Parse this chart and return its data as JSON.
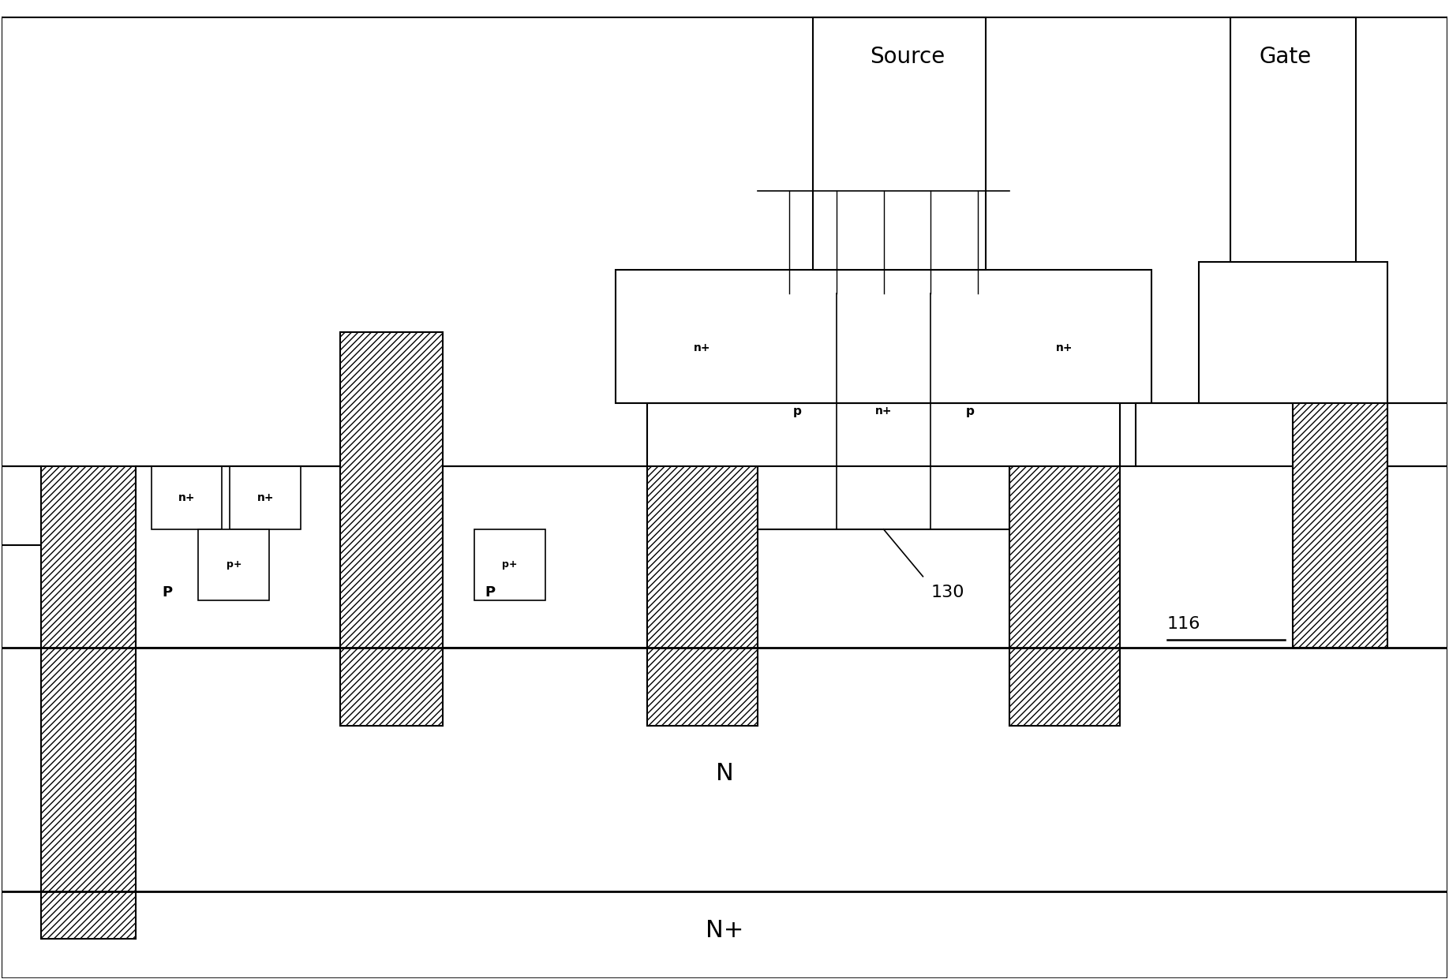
{
  "bg_color": "#ffffff",
  "line_color": "#000000",
  "hatch_pattern": "////",
  "labels": {
    "source": "Source",
    "gate": "Gate",
    "N": "N",
    "Nplus": "N+",
    "n_plus": "n+",
    "p_lower": "p",
    "P_body": "P",
    "p_plus": "p+",
    "num_116": "116",
    "num_130": "130"
  },
  "figsize": [
    18.36,
    12.41
  ],
  "dpi": 100
}
